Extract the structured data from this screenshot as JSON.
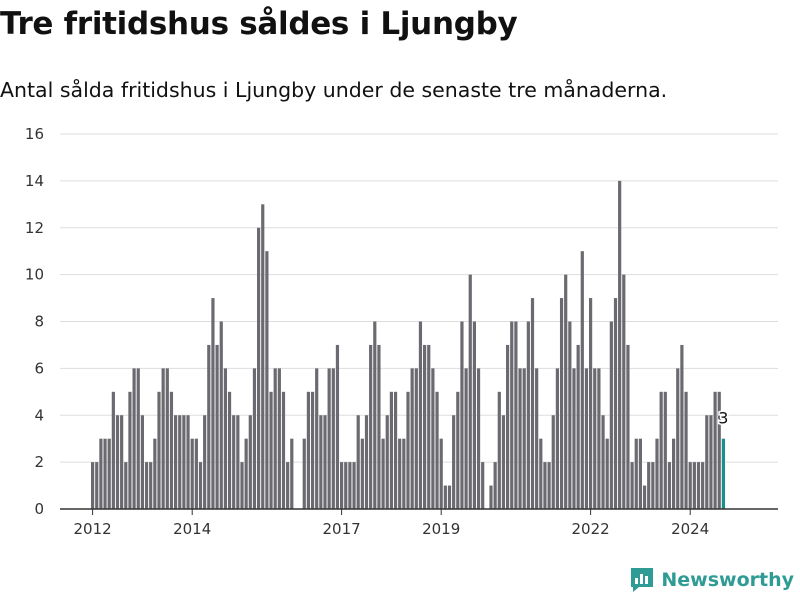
{
  "title": "Tre fritidshus såldes i Ljungby",
  "subtitle": "Antal sålda fritidshus i Ljungby under de senaste tre månaderna.",
  "brand": {
    "name": "Newsworthy",
    "icon": "newsworthy-logo-icon",
    "color": "#2e9c94"
  },
  "chart_data": {
    "type": "bar",
    "title": "Tre fritidshus såldes i Ljungby",
    "subtitle": "Antal sålda fritidshus i Ljungby under de senaste tre månaderna.",
    "xlabel": "",
    "ylabel": "",
    "ylim": [
      0,
      16
    ],
    "yticks": [
      0,
      2,
      4,
      6,
      8,
      10,
      12,
      14,
      16
    ],
    "xtick_labels": [
      "2012",
      "2014",
      "2017",
      "2019",
      "2022",
      "2024"
    ],
    "grid": true,
    "bar_color": "#6b6a70",
    "highlight_color": "#1a8f8b",
    "highlight_label": "3",
    "start": "2012-01",
    "frequency": "monthly",
    "values": [
      2,
      2,
      3,
      3,
      3,
      5,
      4,
      4,
      2,
      5,
      6,
      6,
      4,
      2,
      2,
      3,
      5,
      6,
      6,
      5,
      4,
      4,
      4,
      4,
      3,
      3,
      2,
      4,
      7,
      9,
      7,
      8,
      6,
      5,
      4,
      4,
      2,
      3,
      4,
      6,
      12,
      13,
      11,
      5,
      6,
      6,
      5,
      2,
      3,
      0,
      0,
      3,
      5,
      5,
      6,
      4,
      4,
      6,
      6,
      7,
      2,
      2,
      2,
      2,
      4,
      3,
      4,
      7,
      8,
      7,
      3,
      4,
      5,
      5,
      3,
      3,
      5,
      6,
      6,
      8,
      7,
      7,
      6,
      5,
      3,
      1,
      1,
      4,
      5,
      8,
      6,
      10,
      8,
      6,
      2,
      0,
      1,
      2,
      5,
      4,
      7,
      8,
      8,
      6,
      6,
      8,
      9,
      6,
      3,
      2,
      2,
      4,
      6,
      9,
      10,
      8,
      6,
      7,
      11,
      6,
      9,
      6,
      6,
      4,
      3,
      8,
      9,
      14,
      10,
      7,
      2,
      3,
      3,
      1,
      2,
      2,
      3,
      5,
      5,
      2,
      3,
      6,
      7,
      5,
      2,
      2,
      2,
      2,
      4,
      4,
      5,
      5,
      3
    ]
  }
}
